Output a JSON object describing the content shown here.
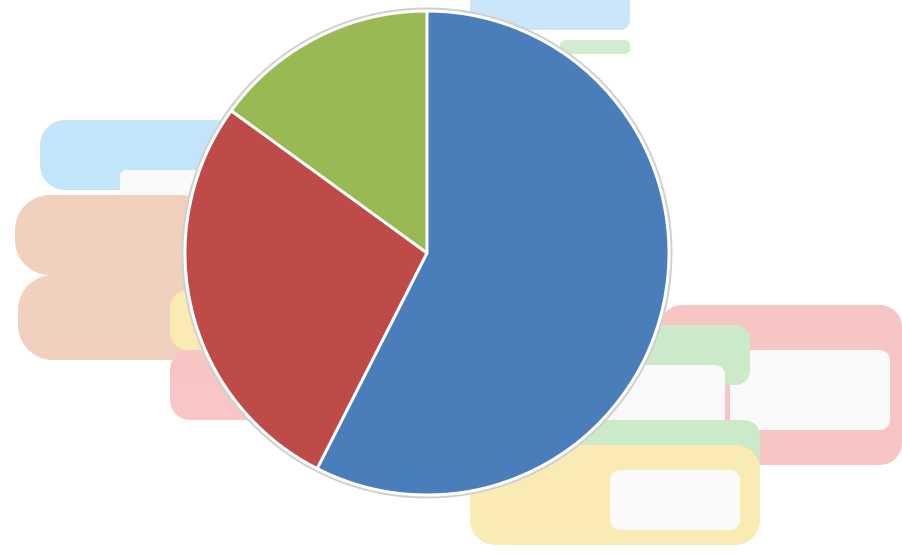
{
  "chart_data": {
    "type": "pie",
    "values": [
      57.5,
      27.5,
      15
    ],
    "colors": [
      "#4a7ebb",
      "#be4b48",
      "#98b954"
    ],
    "start_angle": 0,
    "direction": "clockwise"
  }
}
